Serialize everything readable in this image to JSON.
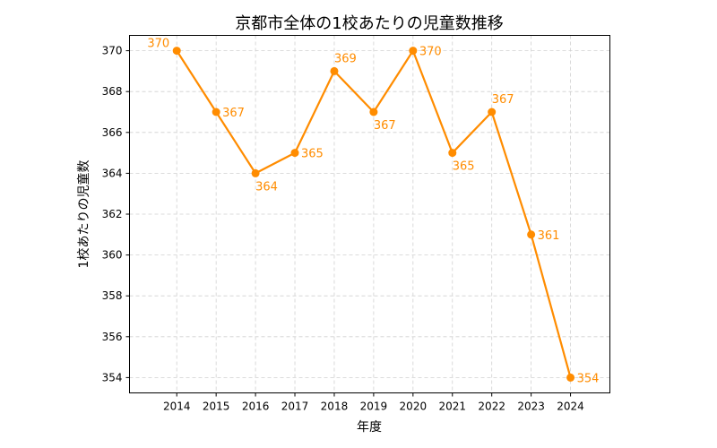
{
  "chart_data": {
    "type": "line",
    "title": "京都市全体の1校あたりの児童数推移",
    "xlabel": "年度",
    "ylabel": "1校あたりの児童数",
    "x": [
      2014,
      2015,
      2016,
      2017,
      2018,
      2019,
      2020,
      2021,
      2022,
      2023,
      2024
    ],
    "series": [
      {
        "values": [
          370,
          367,
          364,
          365,
          369,
          367,
          370,
          365,
          367,
          361,
          354
        ],
        "color": "#ff8c00"
      }
    ],
    "yticks": [
      354,
      356,
      358,
      360,
      362,
      364,
      366,
      368,
      370
    ],
    "ylim": [
      353.25,
      370.75
    ],
    "xlim": [
      2012.8,
      2025.0
    ],
    "grid": true,
    "legend": "none",
    "data_labels": [
      "370",
      "367",
      "364",
      "365",
      "369",
      "367",
      "370",
      "365",
      "367",
      "361",
      "354"
    ]
  }
}
